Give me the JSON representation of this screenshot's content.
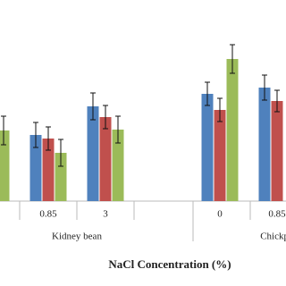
{
  "chart_data": {
    "type": "bar",
    "xlabel": "NaCl Concentration (%)",
    "categories": [
      null,
      "0.85",
      "3",
      null,
      "0",
      "0.85"
    ],
    "groups": [
      {
        "label": "Kidney bean"
      },
      {
        "label": "Chickpea"
      }
    ],
    "ylim": [
      0,
      200
    ],
    "series": [
      {
        "color": "#4f81bd",
        "values": [
          null,
          74,
          106,
          null,
          120,
          127
        ],
        "errors": [
          null,
          14,
          15,
          null,
          13,
          14
        ]
      },
      {
        "color": "#c0504d",
        "values": [
          null,
          70,
          94,
          null,
          102,
          112
        ],
        "errors": [
          null,
          13,
          13,
          null,
          13,
          12
        ]
      },
      {
        "color": "#9bbb59",
        "values": [
          79,
          54,
          80,
          null,
          159,
          null
        ],
        "errors": [
          16,
          15,
          15,
          null,
          16,
          null
        ]
      }
    ]
  }
}
